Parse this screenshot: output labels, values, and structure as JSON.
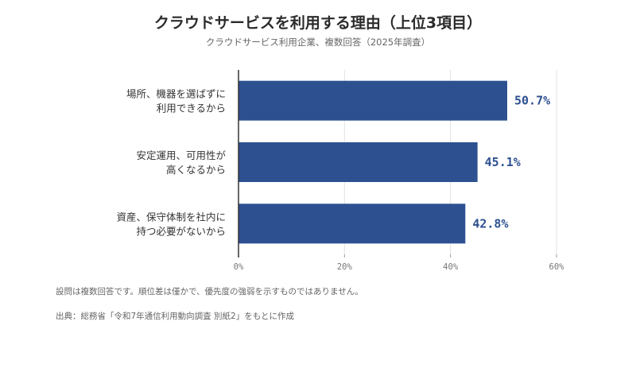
{
  "title": "クラウドサービスを利用する理由（上位3項目）",
  "subtitle": "クラウドサービス利用企業、複数回答（2025年調査）",
  "notes": {
    "note1": "設問は複数回答です。順位差は僅かで、優先度の強弱を示すものではありません。",
    "note2": "出典：総務省「令和7年通信利用動向調査 別紙2」をもとに作成"
  },
  "colors": {
    "bar": "#2d5090",
    "value_label": "#2d5090",
    "grid": "#e2e2e2",
    "axis": "#333333"
  },
  "chart_data": {
    "type": "bar",
    "orientation": "horizontal",
    "categories": [
      [
        "場所、機器を選ばずに",
        "利用できるから"
      ],
      [
        "安定運用、可用性が",
        "高くなるから"
      ],
      [
        "資産、保守体制を社内に",
        "持つ必要がないから"
      ]
    ],
    "values": [
      50.7,
      45.1,
      42.8
    ],
    "value_labels": [
      "50.7%",
      "45.1%",
      "42.8%"
    ],
    "xlim": [
      0,
      60
    ],
    "xticks": [
      0,
      20,
      40,
      60
    ],
    "xtick_labels": [
      "0%",
      "20%",
      "40%",
      "60%"
    ],
    "xlabel": "",
    "ylabel": "",
    "grid": true
  }
}
